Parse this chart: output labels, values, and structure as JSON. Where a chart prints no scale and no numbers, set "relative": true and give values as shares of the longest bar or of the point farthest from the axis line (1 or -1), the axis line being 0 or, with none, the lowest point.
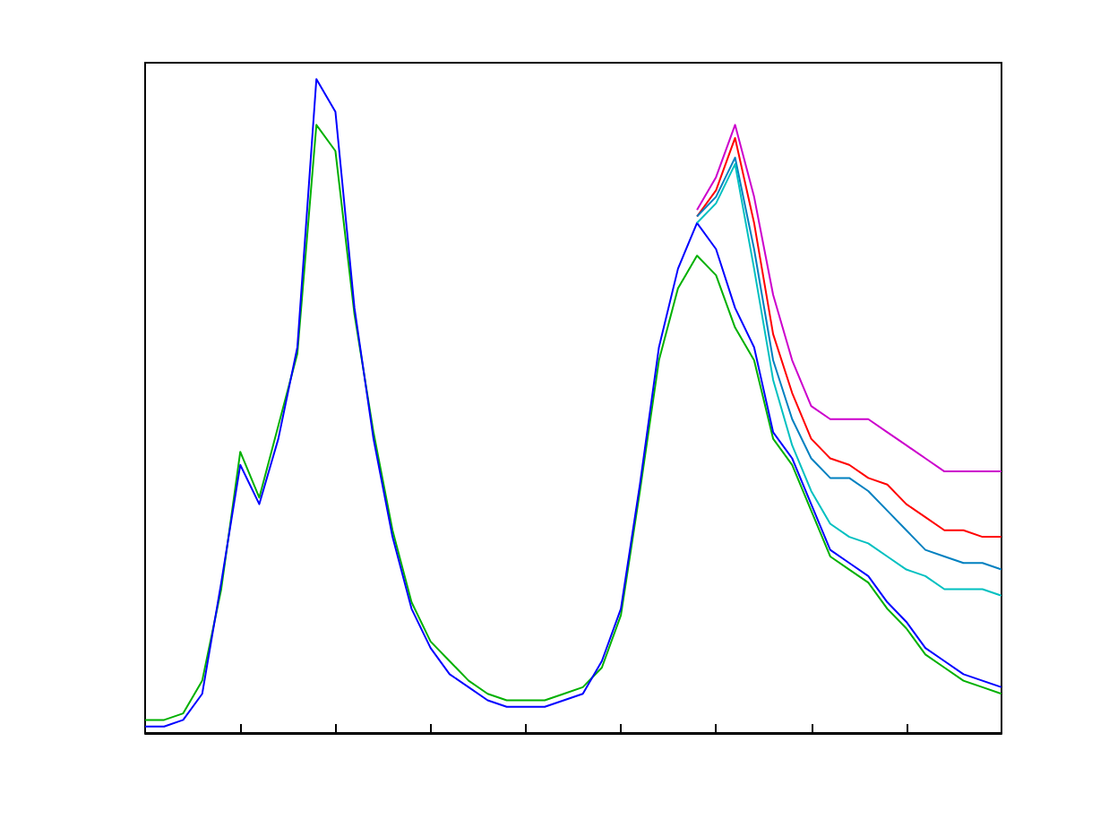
{
  "chart_data": {
    "type": "line",
    "relative": true,
    "grid": false,
    "marker": "none",
    "line_style": "solid",
    "categories": [
      null,
      null,
      null,
      null,
      null,
      null,
      null,
      null,
      null,
      null,
      null,
      null,
      null,
      null,
      null,
      null,
      null,
      null,
      null,
      null,
      null,
      null,
      null,
      null,
      null,
      null,
      null,
      null,
      null,
      null,
      null,
      null,
      null,
      null,
      null,
      null,
      null,
      null,
      null,
      null,
      null,
      null,
      null,
      null,
      null,
      null
    ],
    "series": [
      {
        "color": "#00b000",
        "values": [
          0.02,
          0.02,
          0.03,
          0.08,
          0.22,
          0.43,
          0.36,
          0.47,
          0.58,
          0.93,
          0.89,
          0.64,
          0.46,
          0.31,
          0.2,
          0.14,
          0.11,
          0.08,
          0.06,
          0.05,
          0.05,
          0.05,
          0.06,
          0.07,
          0.1,
          0.18,
          0.37,
          0.57,
          0.68,
          0.73,
          0.7,
          0.62,
          0.57,
          0.45,
          0.41,
          0.34,
          0.27,
          0.25,
          0.23,
          0.19,
          0.16,
          0.12,
          0.1,
          0.08,
          0.07,
          0.06
        ]
      },
      {
        "color": "#0000ff",
        "values": [
          0.01,
          0.01,
          0.02,
          0.06,
          0.23,
          0.41,
          0.35,
          0.45,
          0.59,
          1.0,
          0.95,
          0.65,
          0.45,
          0.3,
          0.19,
          0.13,
          0.09,
          0.07,
          0.05,
          0.04,
          0.04,
          0.04,
          0.05,
          0.06,
          0.11,
          0.19,
          0.38,
          0.59,
          0.71,
          0.78,
          0.74,
          0.65,
          0.59,
          0.46,
          0.42,
          0.35,
          0.28,
          0.26,
          0.24,
          0.2,
          0.17,
          0.13,
          0.11,
          0.09,
          0.08,
          0.07
        ]
      },
      {
        "color": "#cc00cc",
        "values": [
          null,
          null,
          null,
          null,
          null,
          null,
          null,
          null,
          null,
          null,
          null,
          null,
          null,
          null,
          null,
          null,
          null,
          null,
          null,
          null,
          null,
          null,
          null,
          null,
          null,
          null,
          null,
          null,
          null,
          0.8,
          0.85,
          0.93,
          0.82,
          0.67,
          0.57,
          0.5,
          0.48,
          0.48,
          0.48,
          0.46,
          0.44,
          0.42,
          0.4,
          0.4,
          0.4,
          0.4
        ]
      },
      {
        "color": "#ff0000",
        "values": [
          null,
          null,
          null,
          null,
          null,
          null,
          null,
          null,
          null,
          null,
          null,
          null,
          null,
          null,
          null,
          null,
          null,
          null,
          null,
          null,
          null,
          null,
          null,
          null,
          null,
          null,
          null,
          null,
          null,
          0.79,
          0.83,
          0.91,
          0.78,
          0.61,
          0.52,
          0.45,
          0.42,
          0.41,
          0.39,
          0.38,
          0.35,
          0.33,
          0.31,
          0.31,
          0.3,
          0.3
        ]
      },
      {
        "color": "#0080c0",
        "values": [
          null,
          null,
          null,
          null,
          null,
          null,
          null,
          null,
          null,
          null,
          null,
          null,
          null,
          null,
          null,
          null,
          null,
          null,
          null,
          null,
          null,
          null,
          null,
          null,
          null,
          null,
          null,
          null,
          null,
          0.79,
          0.82,
          0.88,
          0.74,
          0.57,
          0.48,
          0.42,
          0.39,
          0.39,
          0.37,
          0.34,
          0.31,
          0.28,
          0.27,
          0.26,
          0.26,
          0.25
        ]
      },
      {
        "color": "#00c0c0",
        "values": [
          null,
          null,
          null,
          null,
          null,
          null,
          null,
          null,
          null,
          null,
          null,
          null,
          null,
          null,
          null,
          null,
          null,
          null,
          null,
          null,
          null,
          null,
          null,
          null,
          null,
          null,
          null,
          null,
          null,
          0.78,
          0.81,
          0.87,
          0.71,
          0.54,
          0.44,
          0.37,
          0.32,
          0.3,
          0.29,
          0.27,
          0.25,
          0.24,
          0.22,
          0.22,
          0.22,
          0.21
        ]
      }
    ]
  }
}
